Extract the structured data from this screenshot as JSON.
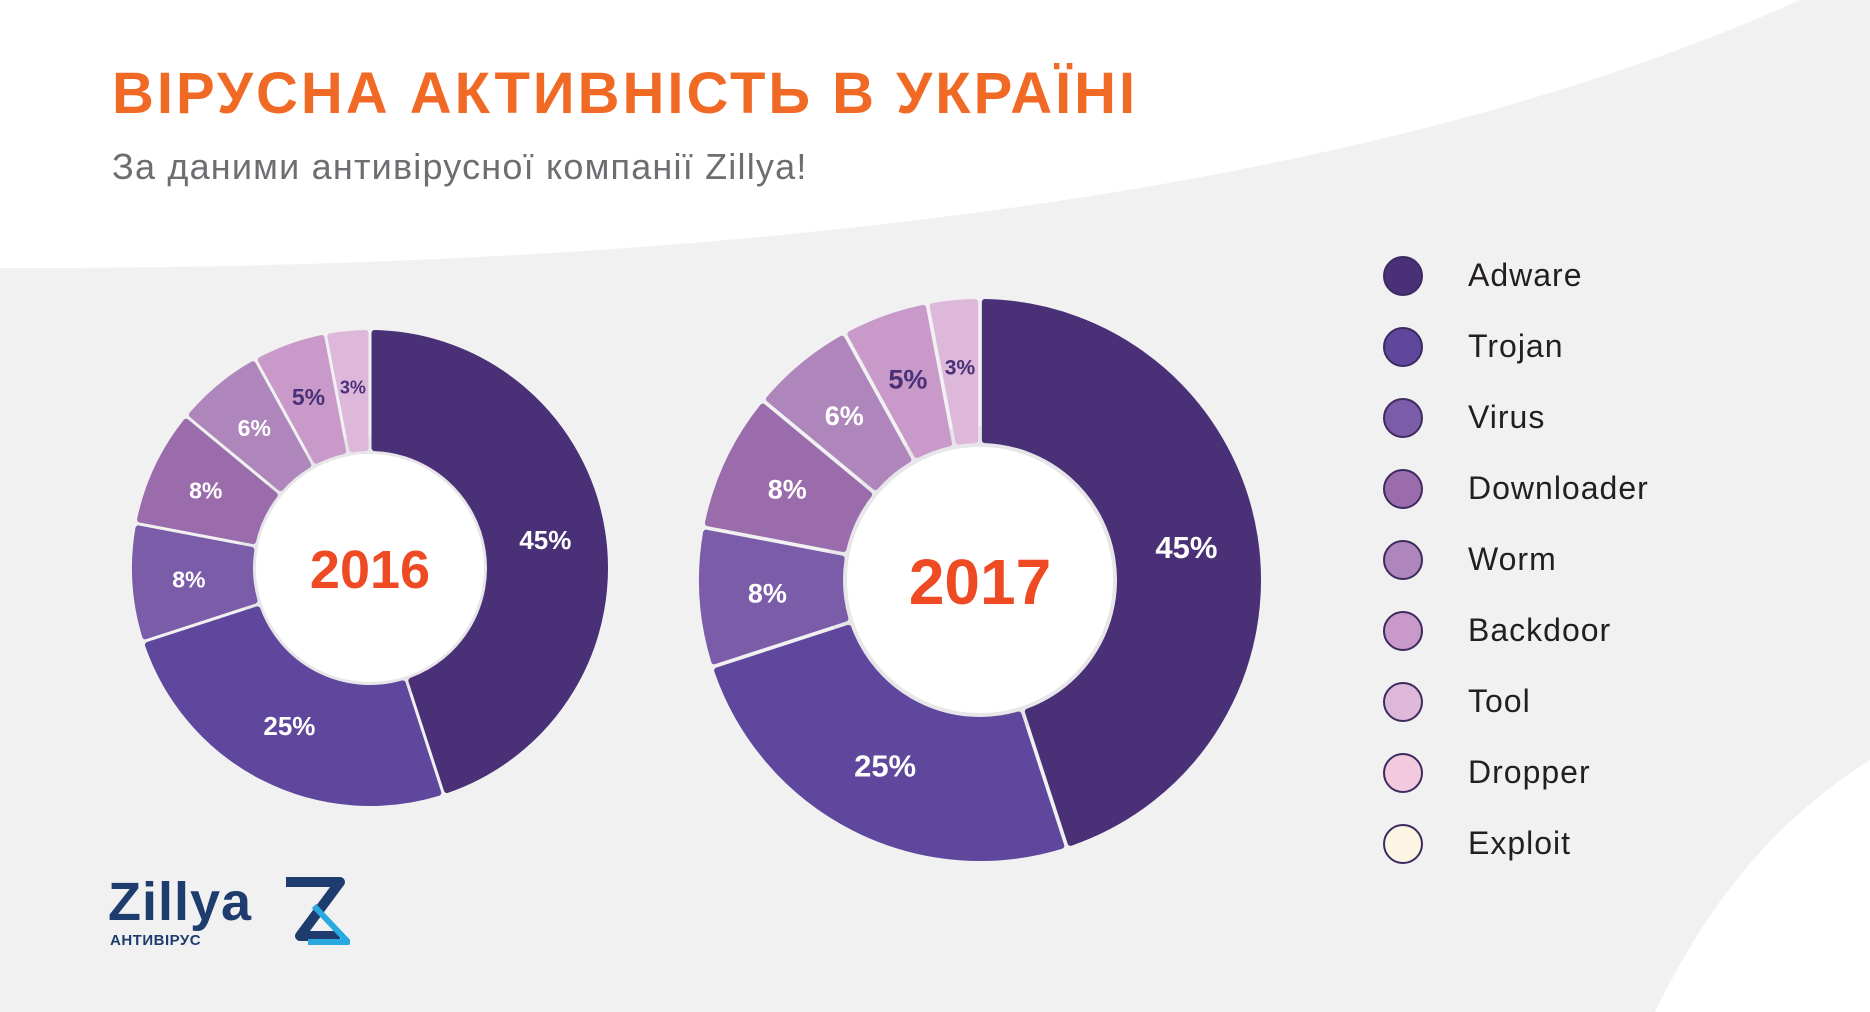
{
  "title": "ВІРУСНА АКТИВНІСТЬ В УКРАЇНІ",
  "subtitle": "За даними антивірусної компанії Zillya!",
  "colors": {
    "title": "#f06a25",
    "year_label": "#ee4a23",
    "background": "#f1f1f2",
    "Adware": "#4a3177",
    "Trojan": "#5e479c",
    "Virus": "#7b5ca8",
    "Downloader": "#9a6cac",
    "Worm": "#af86bb",
    "Backdoor": "#c99ac9",
    "Tool": "#ddb8da",
    "Dropper": "#f2c9df",
    "Exploit": "#fdf5e3"
  },
  "legend": [
    "Adware",
    "Trojan",
    "Virus",
    "Downloader",
    "Worm",
    "Backdoor",
    "Tool",
    "Dropper",
    "Exploit"
  ],
  "chart_data": [
    {
      "type": "pie",
      "center_label": "2016",
      "categories": [
        "Adware",
        "Trojan",
        "Virus",
        "Downloader",
        "Worm",
        "Backdoor",
        "Tool"
      ],
      "values": [
        45,
        25,
        8,
        8,
        6,
        5,
        3
      ],
      "labels": [
        "45%",
        "25%",
        "8%",
        "8%",
        "6%",
        "5%",
        "3%"
      ]
    },
    {
      "type": "pie",
      "center_label": "2017",
      "categories": [
        "Adware",
        "Trojan",
        "Virus",
        "Downloader",
        "Worm",
        "Backdoor",
        "Tool"
      ],
      "values": [
        45,
        25,
        8,
        8,
        6,
        5,
        3
      ],
      "labels": [
        "45%",
        "25%",
        "8%",
        "8%",
        "6%",
        "5%",
        "3%"
      ]
    }
  ],
  "logo": {
    "wordmark": "Zillya",
    "caption": "АНТИВІРУС"
  }
}
